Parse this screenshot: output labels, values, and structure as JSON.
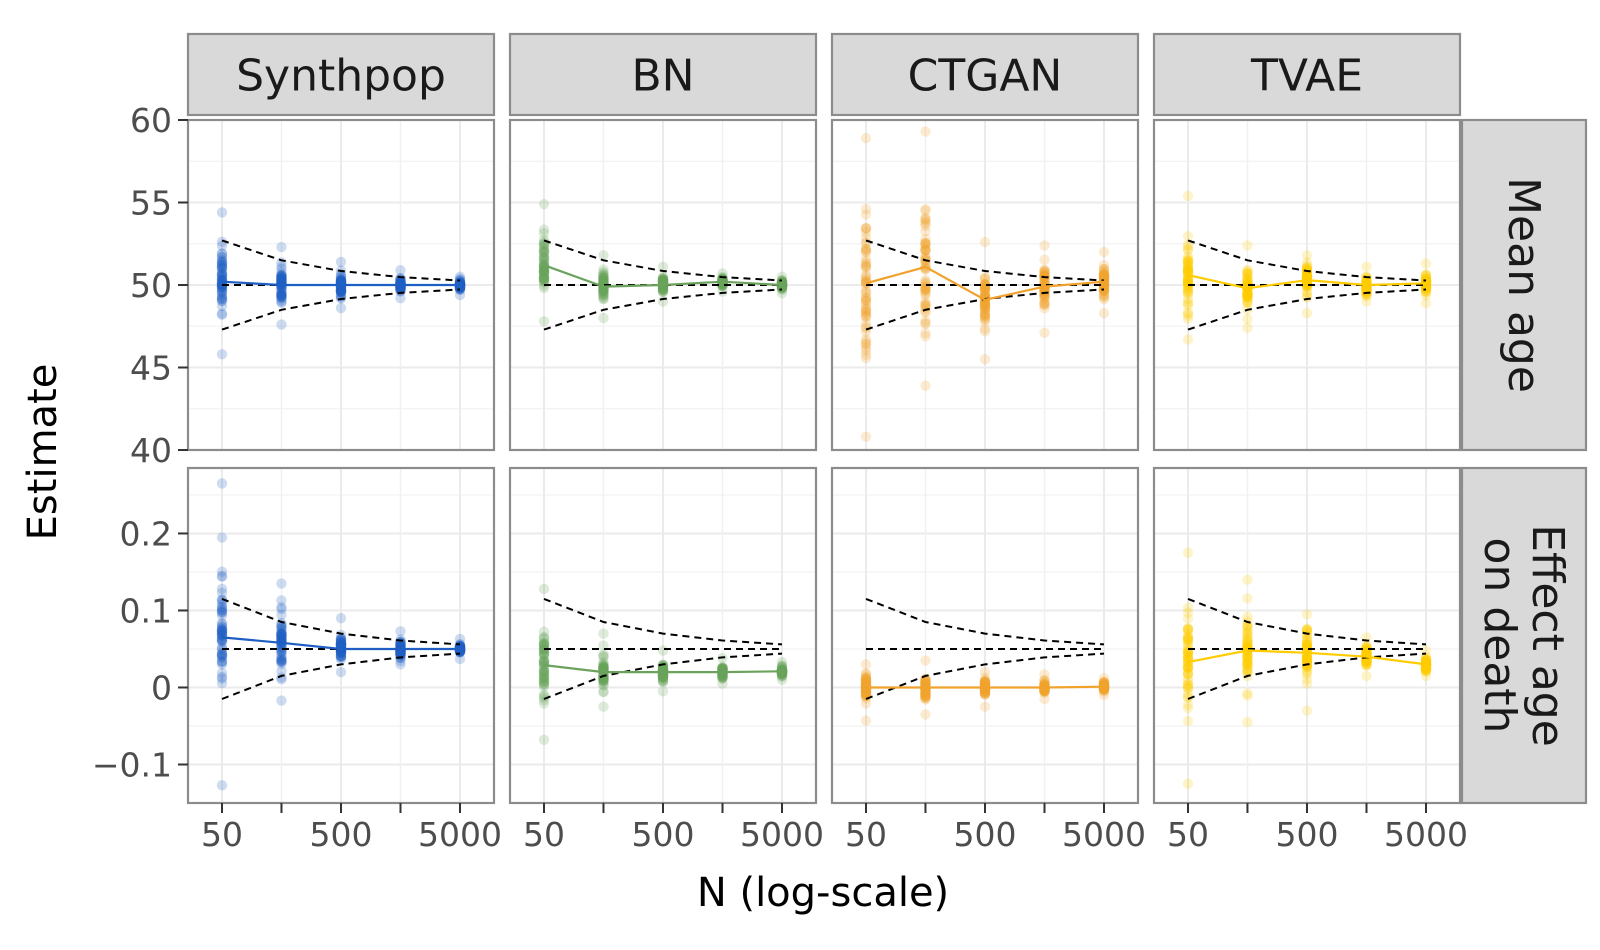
{
  "chart_data": {
    "type": "scatter",
    "xlabel": "N (log-scale)",
    "ylabel": "Estimate",
    "x_scale": "log",
    "x_values": [
      50,
      158,
      500,
      1581,
      5000
    ],
    "x_ticks": [
      50,
      500,
      5000
    ],
    "x_tick_labels": [
      "50",
      "500",
      "5000"
    ],
    "x_minor_ticks": [
      158,
      1581
    ],
    "grid": true,
    "columns": [
      "Synthpop",
      "BN",
      "CTGAN",
      "TVAE"
    ],
    "rows": [
      {
        "label": "Mean age",
        "true_value": 50,
        "ylim": [
          40,
          60
        ],
        "y_ticks": [
          40,
          45,
          50,
          55,
          60
        ],
        "y_tick_labels": [
          "40",
          "45",
          "50",
          "55",
          "60"
        ]
      },
      {
        "label": "Effect age on death",
        "true_value": 0.05,
        "ylim": [
          -0.15,
          0.285
        ],
        "y_ticks": [
          -0.1,
          0,
          0.1,
          0.2
        ],
        "y_tick_labels": [
          "−0.1",
          "0",
          "0.1",
          "0.2"
        ]
      }
    ],
    "reference_bounds": {
      "mean_age": {
        "upper": [
          52.7,
          51.5,
          50.85,
          50.48,
          50.27
        ],
        "lower": [
          47.3,
          48.5,
          49.15,
          49.52,
          49.73
        ]
      },
      "effect_age_on_death": {
        "upper": [
          0.115,
          0.085,
          0.07,
          0.061,
          0.056
        ],
        "lower": [
          -0.015,
          0.015,
          0.03,
          0.039,
          0.044
        ]
      }
    },
    "series": [
      {
        "name": "Synthpop",
        "color": "#1f5fc4",
        "mean_age": {
          "mean": [
            50.2,
            50.0,
            50.0,
            50.0,
            50.0
          ],
          "min": [
            45.8,
            47.6,
            48.6,
            49.2,
            49.4
          ],
          "max": [
            54.4,
            52.3,
            51.4,
            50.9,
            50.5
          ]
        },
        "effect_age_on_death": {
          "mean": [
            0.065,
            0.058,
            0.05,
            0.05,
            0.05
          ],
          "min": [
            -0.127,
            -0.017,
            0.02,
            0.03,
            0.037
          ],
          "max": [
            0.265,
            0.135,
            0.09,
            0.073,
            0.063
          ]
        }
      },
      {
        "name": "BN",
        "color": "#6ba35c",
        "mean_age": {
          "mean": [
            51.2,
            49.9,
            50.0,
            50.2,
            50.0
          ],
          "min": [
            47.8,
            48.0,
            49.0,
            49.6,
            49.5
          ],
          "max": [
            54.9,
            51.8,
            51.1,
            50.7,
            50.5
          ]
        },
        "effect_age_on_death": {
          "mean": [
            0.029,
            0.02,
            0.02,
            0.02,
            0.021
          ],
          "min": [
            -0.068,
            -0.025,
            -0.005,
            0.005,
            0.01
          ],
          "max": [
            0.128,
            0.07,
            0.048,
            0.038,
            0.033
          ]
        }
      },
      {
        "name": "CTGAN",
        "color": "#f0a22d",
        "mean_age": {
          "mean": [
            50.1,
            51.1,
            49.1,
            49.9,
            50.2
          ],
          "min": [
            40.8,
            43.9,
            45.5,
            47.1,
            48.3
          ],
          "max": [
            58.9,
            59.3,
            52.6,
            52.4,
            52.0
          ]
        },
        "effect_age_on_death": {
          "mean": [
            0.0,
            0.0,
            0.0,
            0.0,
            0.001
          ],
          "min": [
            -0.043,
            -0.035,
            -0.025,
            -0.015,
            -0.01
          ],
          "max": [
            0.03,
            0.035,
            0.02,
            0.017,
            0.012
          ]
        }
      },
      {
        "name": "TVAE",
        "color": "#ffcc00",
        "mean_age": {
          "mean": [
            50.6,
            49.8,
            50.3,
            50.0,
            50.1
          ],
          "min": [
            46.7,
            47.4,
            48.3,
            49.0,
            48.9
          ],
          "max": [
            55.4,
            52.4,
            51.8,
            51.1,
            51.3
          ]
        },
        "effect_age_on_death": {
          "mean": [
            0.033,
            0.048,
            0.045,
            0.04,
            0.03
          ],
          "min": [
            -0.125,
            -0.045,
            -0.03,
            0.015,
            0.015
          ],
          "max": [
            0.175,
            0.14,
            0.095,
            0.065,
            0.048
          ]
        }
      }
    ]
  }
}
